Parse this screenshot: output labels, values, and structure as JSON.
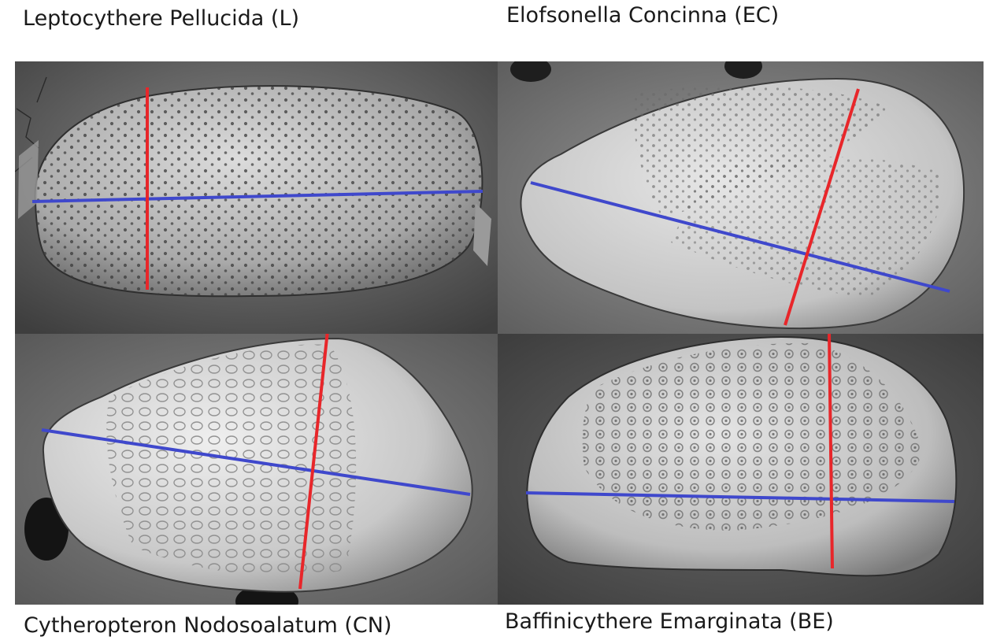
{
  "captions": {
    "leptocythere": "Leptocythere Pellucida (L)",
    "elofsonella": "Elofsonella Concinna (EC)",
    "cytheropteron": "Cytheropteron Nodosoalatum (CN)",
    "baffinicythere": "Baffinicythere Emarginata (BE)"
  },
  "colors": {
    "length_line": "#3f48cc",
    "height_line": "#e8262a",
    "background_dark": "#4a4a4a",
    "shell_light": "#e6e6e6"
  }
}
